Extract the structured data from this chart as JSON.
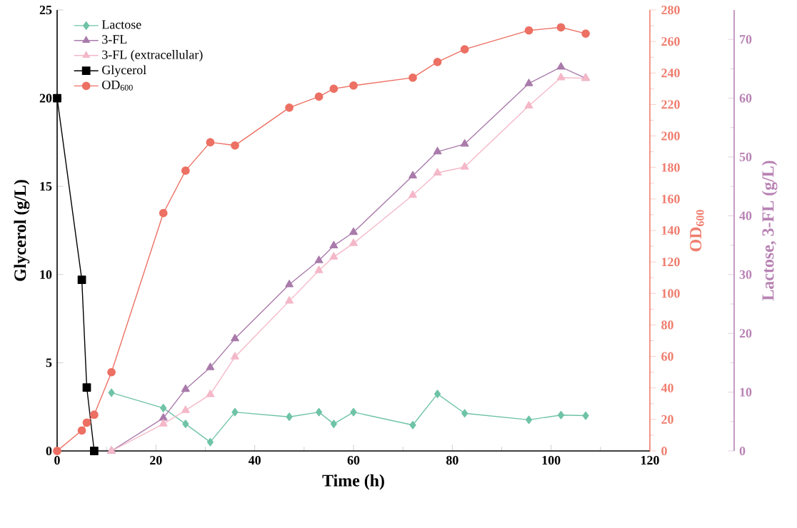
{
  "chart_data": {
    "type": "line",
    "xlabel": "Time (h)",
    "ylabel": "Glycerol (g/L)",
    "y2label": "OD$_{600}$",
    "y3label": "Lactose, 3-FL (g/L)",
    "xlim": [
      0,
      120
    ],
    "xticks": [
      0,
      20,
      40,
      60,
      80,
      100,
      120
    ],
    "ylim": [
      0,
      25
    ],
    "yticks": [
      0,
      5,
      10,
      15,
      20,
      25
    ],
    "y2lim": [
      0,
      280
    ],
    "y2ticks": [
      0,
      20,
      40,
      60,
      80,
      100,
      120,
      140,
      160,
      180,
      200,
      220,
      240,
      260,
      280
    ],
    "y3lim": [
      0,
      75
    ],
    "y3ticks": [
      0,
      10,
      20,
      30,
      40,
      50,
      60,
      70
    ],
    "legend": "top left",
    "grid": false,
    "series": [
      {
        "name": "Lactose",
        "color": "#6fc3a7",
        "marker": "diamond",
        "axis": "y3",
        "x": [
          11,
          21.5,
          26,
          31,
          36,
          47,
          53,
          56,
          60,
          72,
          77,
          82.5,
          95.5,
          102,
          107
        ],
        "values": [
          9.9,
          7.3,
          4.6,
          1.5,
          6.6,
          5.8,
          6.6,
          4.6,
          6.6,
          4.4,
          9.7,
          6.4,
          5.3,
          6.1,
          6.0
        ]
      },
      {
        "name": "3-FL",
        "color": "#a97bab",
        "marker": "triangle",
        "axis": "y3",
        "x": [
          11,
          21.5,
          26,
          31,
          36,
          47,
          53,
          56,
          60,
          72,
          77,
          82.5,
          95.5,
          102,
          107
        ],
        "values": [
          0,
          5.6,
          10.5,
          14.2,
          19.1,
          28.3,
          32.4,
          34.9,
          37.2,
          46.8,
          50.9,
          52.2,
          62.5,
          65.3,
          63.4
        ]
      },
      {
        "name": "3-FL (extracellular)",
        "color": "#f4b8c8",
        "marker": "triangle",
        "axis": "y3",
        "x": [
          11,
          21.5,
          26,
          31,
          36,
          47,
          53,
          56,
          60,
          72,
          77,
          82.5,
          95.5,
          102,
          107
        ],
        "values": [
          0,
          4.6,
          6.9,
          9.6,
          16.0,
          25.5,
          30.7,
          33.0,
          35.3,
          43.5,
          47.3,
          48.3,
          58.7,
          63.5,
          63.4
        ]
      },
      {
        "name": "Glycerol",
        "color": "#000000",
        "marker": "square",
        "axis": "y",
        "x": [
          0,
          5,
          6,
          7.5
        ],
        "values": [
          20.0,
          9.7,
          3.6,
          0
        ]
      },
      {
        "name": "OD$_{600}$",
        "color": "#ec7063",
        "marker": "circle",
        "axis": "y2",
        "x": [
          0,
          5,
          6,
          7.5,
          11,
          21.5,
          26,
          31,
          36,
          47,
          53,
          56,
          60,
          72,
          77,
          82.5,
          95.5,
          102,
          107
        ],
        "values": [
          0,
          13,
          18,
          23,
          50,
          151,
          178,
          196,
          194,
          218,
          225,
          230,
          232,
          237,
          247,
          255,
          267,
          269,
          265
        ]
      }
    ]
  }
}
